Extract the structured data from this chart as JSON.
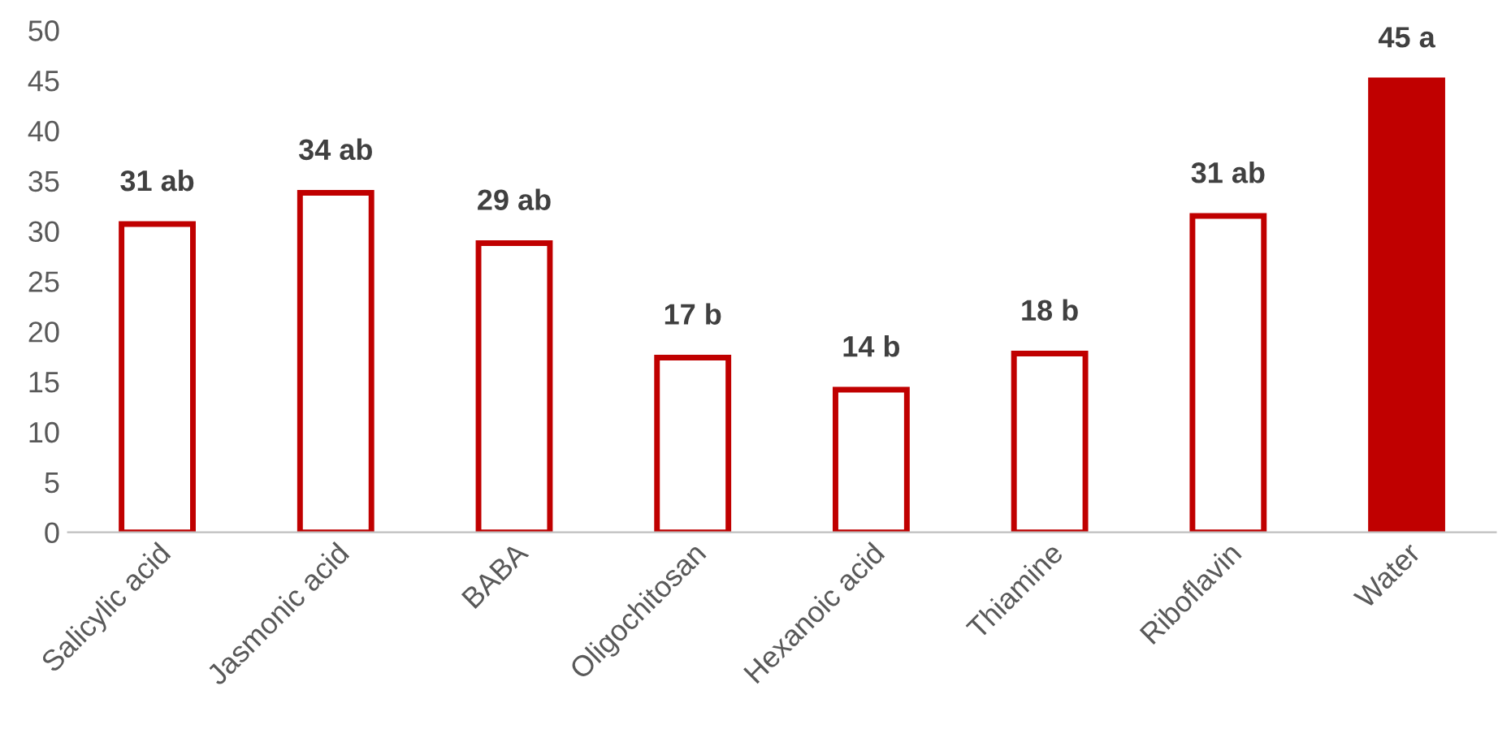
{
  "chart_data": {
    "type": "bar",
    "categories": [
      "Salicylic acid",
      "Jasmonic acid",
      "BABA",
      "Oligochitosan",
      "Hexanoic acid",
      "Thiamine",
      "Riboflavin",
      "Water"
    ],
    "values": [
      30.7,
      33.8,
      28.8,
      17.4,
      14.2,
      17.8,
      31.5,
      45
    ],
    "colors": [
      "#ffffff",
      "#ffffff",
      "#ffffff",
      "#ffffff",
      "#ffffff",
      "#ffffff",
      "#ffffff",
      "#c00000"
    ],
    "value_labels": [
      "31 ab",
      "34 ab",
      "29 ab",
      "17 b",
      "14 b",
      "18 b",
      "31 ab",
      "45 a"
    ],
    "ylim": [
      0,
      50
    ],
    "yticks": [
      0,
      5,
      10,
      15,
      20,
      25,
      30,
      35,
      40,
      45,
      50
    ],
    "grid": false,
    "legend": false
  }
}
